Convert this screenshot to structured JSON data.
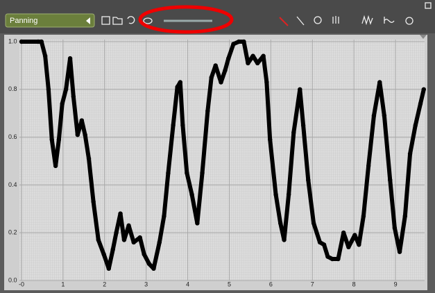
{
  "toolbar": {
    "parameter": "Panning"
  },
  "chart_data": {
    "type": "line",
    "x": [
      0,
      0.4,
      0.48,
      0.57,
      0.65,
      0.73,
      0.82,
      0.9,
      0.98,
      1.07,
      1.17,
      1.25,
      1.35,
      1.45,
      1.53,
      1.62,
      1.73,
      1.85,
      1.98,
      2.1,
      2.2,
      2.28,
      2.38,
      2.47,
      2.58,
      2.7,
      2.85,
      2.95,
      3.07,
      3.18,
      3.32,
      3.43,
      3.53,
      3.65,
      3.75,
      3.82,
      3.88,
      3.98,
      4.1,
      4.23,
      4.35,
      4.48,
      4.57,
      4.67,
      4.8,
      4.9,
      4.98,
      5.1,
      5.23,
      5.35,
      5.45,
      5.57,
      5.68,
      5.82,
      5.9,
      5.98,
      6.12,
      6.23,
      6.32,
      6.43,
      6.55,
      6.7,
      6.78,
      6.9,
      7.03,
      7.18,
      7.28,
      7.37,
      7.48,
      7.62,
      7.75,
      7.87,
      8.02,
      8.12,
      8.23,
      8.35,
      8.48,
      8.62,
      8.73,
      8.87,
      8.98,
      9.1,
      9.23,
      9.35,
      9.48,
      9.6,
      9.68
    ],
    "series": [
      {
        "color": "#000000",
        "values": [
          1.0,
          1.0,
          1.0,
          0.94,
          0.8,
          0.59,
          0.48,
          0.59,
          0.74,
          0.8,
          0.93,
          0.77,
          0.61,
          0.67,
          0.61,
          0.51,
          0.33,
          0.17,
          0.11,
          0.05,
          0.13,
          0.2,
          0.28,
          0.17,
          0.23,
          0.16,
          0.18,
          0.11,
          0.07,
          0.05,
          0.16,
          0.27,
          0.45,
          0.65,
          0.81,
          0.83,
          0.65,
          0.45,
          0.36,
          0.24,
          0.45,
          0.71,
          0.85,
          0.9,
          0.83,
          0.88,
          0.93,
          0.99,
          1.0,
          1.0,
          0.91,
          0.94,
          0.91,
          0.94,
          0.83,
          0.59,
          0.36,
          0.24,
          0.17,
          0.36,
          0.62,
          0.8,
          0.65,
          0.42,
          0.24,
          0.16,
          0.15,
          0.1,
          0.09,
          0.09,
          0.2,
          0.14,
          0.19,
          0.15,
          0.27,
          0.48,
          0.69,
          0.83,
          0.69,
          0.42,
          0.22,
          0.12,
          0.27,
          0.53,
          0.65,
          0.74,
          0.8
        ]
      }
    ],
    "xlim": [
      -0.05,
      9.7
    ],
    "ylim": [
      0,
      1
    ],
    "xticks": [
      {
        "value": 0,
        "label": "-0"
      },
      1,
      2,
      3,
      4,
      5,
      6,
      7,
      8,
      9
    ],
    "yticks": [
      {
        "value": 0,
        "label": "0.0"
      },
      0.2,
      0.4,
      0.6,
      0.8,
      {
        "value": 1,
        "label": "1.0"
      }
    ],
    "grid": true
  }
}
